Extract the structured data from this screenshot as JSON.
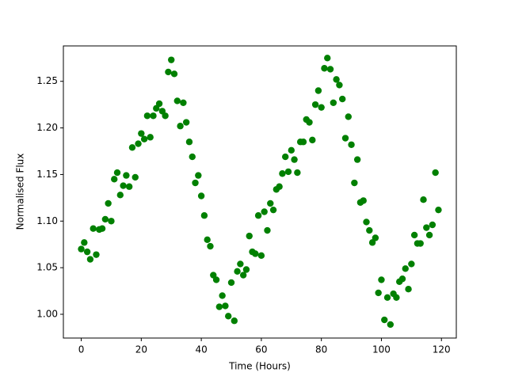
{
  "chart_data": {
    "type": "scatter",
    "xlabel": "Time (Hours)",
    "ylabel": "Normalised Flux",
    "series": [
      {
        "color": "#008000",
        "x": [
          0,
          1,
          2,
          3,
          4,
          5,
          6,
          7,
          8,
          9,
          10,
          11,
          12,
          13,
          14,
          15,
          16,
          17,
          18,
          19,
          20,
          21,
          22,
          23,
          24,
          25,
          26,
          27,
          28,
          29,
          30,
          31,
          32,
          33,
          34,
          35,
          36,
          37,
          38,
          39,
          40,
          41,
          42,
          43,
          44,
          45,
          46,
          47,
          48,
          49,
          50,
          51,
          52,
          53,
          54,
          55,
          56,
          57,
          58,
          59,
          60,
          61,
          62,
          63,
          64,
          65,
          66,
          67,
          68,
          69,
          70,
          71,
          72,
          73,
          74,
          75,
          76,
          77,
          78,
          79,
          80,
          81,
          82,
          83,
          84,
          85,
          86,
          87,
          88,
          89,
          90,
          91,
          92,
          93,
          94,
          95,
          96,
          97,
          98,
          99,
          100,
          101,
          102,
          103,
          104,
          105,
          106,
          107,
          108,
          109,
          110,
          111,
          112,
          113,
          114,
          115,
          116,
          117,
          118,
          119
        ],
        "values": [
          1.07,
          1.077,
          1.067,
          1.059,
          1.092,
          1.064,
          1.091,
          1.092,
          1.102,
          1.119,
          1.1,
          1.145,
          1.152,
          1.128,
          1.138,
          1.149,
          1.137,
          1.179,
          1.147,
          1.183,
          1.194,
          1.188,
          1.213,
          1.19,
          1.213,
          1.221,
          1.226,
          1.218,
          1.213,
          1.26,
          1.273,
          1.258,
          1.229,
          1.202,
          1.227,
          1.206,
          1.185,
          1.169,
          1.141,
          1.149,
          1.127,
          1.106,
          1.08,
          1.073,
          1.042,
          1.037,
          1.008,
          1.02,
          1.009,
          0.998,
          1.034,
          0.993,
          1.046,
          1.054,
          1.042,
          1.048,
          1.084,
          1.067,
          1.065,
          1.106,
          1.063,
          1.11,
          1.09,
          1.119,
          1.112,
          1.134,
          1.137,
          1.151,
          1.169,
          1.153,
          1.176,
          1.166,
          1.152,
          1.185,
          1.185,
          1.209,
          1.206,
          1.187,
          1.225,
          1.24,
          1.222,
          1.264,
          1.275,
          1.263,
          1.227,
          1.252,
          1.246,
          1.231,
          1.189,
          1.212,
          1.182,
          1.141,
          1.166,
          1.12,
          1.122,
          1.099,
          1.09,
          1.077,
          1.082,
          1.023,
          1.037,
          0.994,
          1.018,
          0.989,
          1.022,
          1.018,
          1.035,
          1.038,
          1.049,
          1.027,
          1.054,
          1.085,
          1.076,
          1.076,
          1.123,
          1.093,
          1.085,
          1.096,
          1.152,
          1.112
        ]
      }
    ],
    "xlim": [
      -5.95,
      124.95
    ],
    "xticks": [
      0,
      20,
      40,
      60,
      80,
      100,
      120
    ],
    "ylim": [
      0.9745,
      1.288
    ],
    "yticks": [
      {
        "value": 1,
        "label": "1.00"
      },
      1.05,
      {
        "value": 1.1,
        "label": "1.10"
      },
      1.15,
      {
        "value": 1.2,
        "label": "1.20"
      },
      1.25
    ]
  }
}
